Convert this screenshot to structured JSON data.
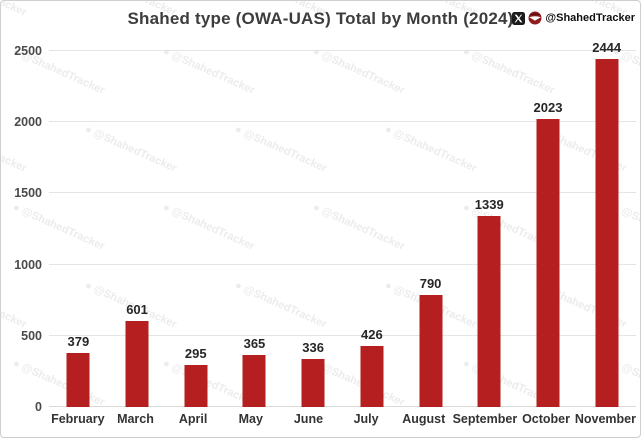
{
  "header": {
    "title": "Shahed type (OWA-UAS) Total by Month (2024)",
    "attribution": {
      "handle": "@ShahedTracker",
      "icons": [
        "x-logo-icon",
        "shahedtracker-logo-icon"
      ]
    }
  },
  "watermark": {
    "text": "@ShahedTracker",
    "color": "#ececec"
  },
  "chart_data": {
    "type": "bar",
    "title": "Shahed type (OWA-UAS) Total by Month (2024)",
    "categories": [
      "February",
      "March",
      "April",
      "May",
      "June",
      "July",
      "August",
      "September",
      "October",
      "November"
    ],
    "values": [
      379,
      601,
      295,
      365,
      336,
      426,
      790,
      1339,
      2023,
      2444
    ],
    "xlabel": "",
    "ylabel": "",
    "ylim": [
      0,
      2500
    ],
    "yticks": [
      0,
      500,
      1000,
      1500,
      2000,
      2500
    ],
    "grid": true,
    "legend": "none",
    "bar_color": "#b51f1f",
    "value_labels": true
  },
  "colors": {
    "accent_red": "#b51f1f",
    "title_text": "#3d3d3d",
    "tick_text": "#4a4a4a",
    "gridline": "#e4e4e4",
    "logo_red": "#8f1d1d",
    "logo_black": "#1a1a1a"
  }
}
